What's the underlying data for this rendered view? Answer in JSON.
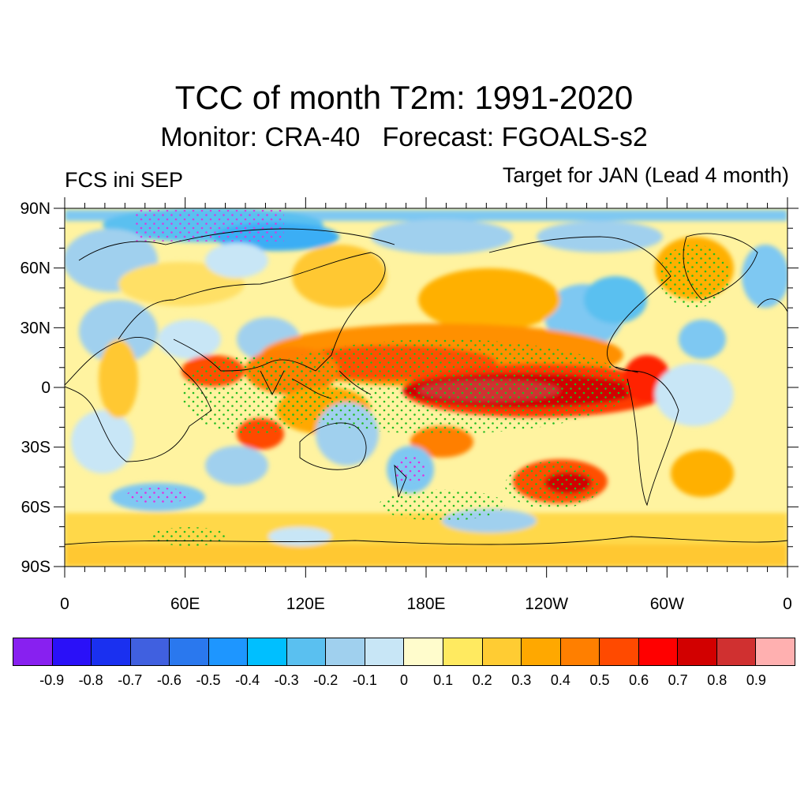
{
  "header": {
    "title": "TCC of month T2m: 1991-2020",
    "monitor": "Monitor: CRA-40",
    "forecast": "Forecast: FGOALS-s2",
    "left_label": "FCS ini SEP",
    "right_label": "Target for JAN (Lead 4 month)"
  },
  "map": {
    "projection": "cylindrical-equidistant",
    "lat_labels": [
      "90N",
      "60N",
      "30N",
      "0",
      "30S",
      "60S",
      "90S"
    ],
    "lon_labels": [
      "0",
      "60E",
      "120E",
      "180E",
      "120W",
      "60W",
      "0"
    ],
    "lon_range": [
      0,
      360
    ],
    "lat_range": [
      -90,
      90
    ],
    "stippling": "significant correlation (dots)",
    "stipple_colors": {
      "positive": "#22bb22",
      "negative": "#e030e0"
    },
    "background_color": "#fff3a0"
  },
  "colorbar": {
    "colors": [
      "#8820f0",
      "#2a10f8",
      "#1a30f0",
      "#4060e0",
      "#2a78ee",
      "#1e96ff",
      "#00bfff",
      "#5ac0f0",
      "#a0d0ee",
      "#c8e6f6",
      "#fffccc",
      "#ffea60",
      "#ffcc33",
      "#ffa800",
      "#ff7f00",
      "#ff4a00",
      "#ff0000",
      "#d20000",
      "#d03030",
      "#ffb0b0"
    ],
    "labels": [
      "-0.9",
      "-0.8",
      "-0.7",
      "-0.6",
      "-0.5",
      "-0.4",
      "-0.3",
      "-0.2",
      "-0.1",
      "0",
      "0.1",
      "0.2",
      "0.3",
      "0.4",
      "0.5",
      "0.6",
      "0.7",
      "0.8",
      "0.9"
    ]
  }
}
